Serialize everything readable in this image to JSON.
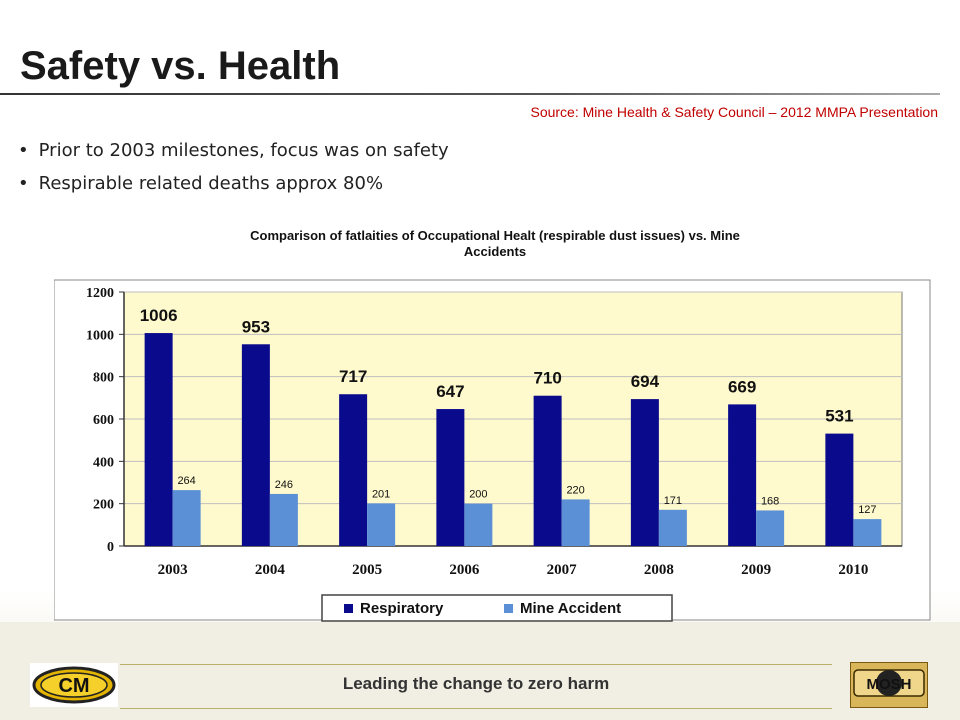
{
  "slide": {
    "title": "Safety vs. Health",
    "source": "Source: Mine Health & Safety Council – 2012 MMPA Presentation",
    "bullets": [
      "Prior to 2003 milestones, focus was on safety",
      "Respirable related deaths approx 80%"
    ]
  },
  "footer": {
    "tagline": "Leading the change to zero harm",
    "logo_left": "CM",
    "logo_right": "MOSH"
  },
  "chart_data": {
    "type": "bar",
    "title_line1": "Comparison of fatlaities  of Occupational Healt (respirable dust issues) vs. Mine",
    "title_line2": "Accidents",
    "categories": [
      "2003",
      "2004",
      "2005",
      "2006",
      "2007",
      "2008",
      "2009",
      "2010"
    ],
    "series": [
      {
        "name": "Respiratory",
        "values": [
          1006,
          953,
          717,
          647,
          710,
          694,
          669,
          531
        ],
        "color": "#0a0a8c"
      },
      {
        "name": "Mine Accident",
        "values": [
          264,
          246,
          201,
          200,
          220,
          171,
          168,
          127
        ],
        "color": "#5b8fd6"
      }
    ],
    "ylim": [
      0,
      1200
    ],
    "yticks": [
      0,
      200,
      400,
      600,
      800,
      1000,
      1200
    ],
    "grid": true,
    "legend_position": "bottom",
    "plot_background": "#fffacd"
  }
}
